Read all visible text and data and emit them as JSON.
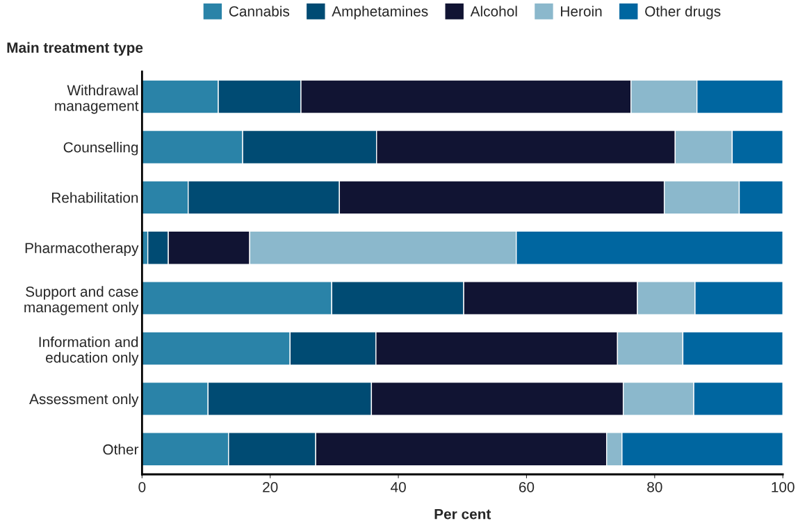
{
  "chart_data": {
    "type": "bar",
    "orientation": "horizontal",
    "stacked": true,
    "xlabel": "Per cent",
    "ylabel": "Main treatment type",
    "categories": [
      "Withdrawal\nmanagement",
      "Counselling",
      "Rehabilitation",
      "Pharmacotherapy",
      "Support and case\nmanagement only",
      "Information and\neducation only",
      "Assessment only",
      "Other"
    ],
    "series": [
      {
        "name": "Cannabis",
        "color": "#2a83a8",
        "values": [
          11.9,
          15.7,
          7.2,
          0.9,
          29.6,
          23.1,
          10.3,
          13.5
        ]
      },
      {
        "name": "Amphetamines",
        "color": "#004b73",
        "values": [
          12.9,
          20.9,
          23.6,
          3.2,
          20.6,
          13.4,
          25.5,
          13.6
        ]
      },
      {
        "name": "Alcohol",
        "color": "#111433",
        "values": [
          51.5,
          46.6,
          50.7,
          12.7,
          27.1,
          37.7,
          39.3,
          45.4
        ]
      },
      {
        "name": "Heroin",
        "color": "#8bb8cc",
        "values": [
          10.3,
          8.9,
          11.7,
          41.6,
          9.0,
          10.2,
          11.0,
          2.4
        ]
      },
      {
        "name": "Other drugs",
        "color": "#0066a0",
        "values": [
          13.4,
          7.9,
          6.8,
          41.6,
          13.7,
          15.6,
          13.9,
          25.1
        ]
      }
    ],
    "xlim": [
      0,
      100
    ],
    "xticks": [
      0,
      20,
      40,
      60,
      80,
      100
    ],
    "grid": false,
    "legend": "top"
  }
}
